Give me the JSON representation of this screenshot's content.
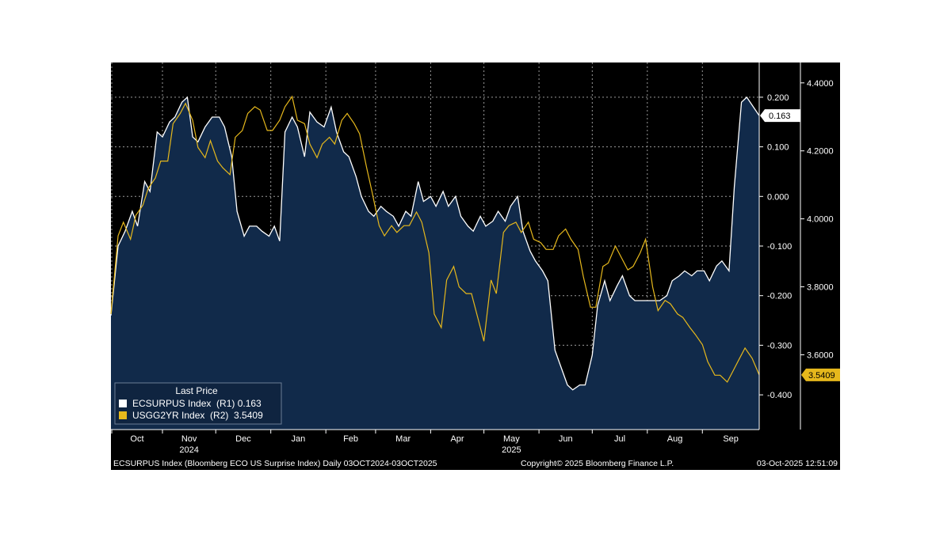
{
  "chart_data": {
    "type": "line",
    "legend": {
      "title": "Last Price",
      "placement": "bottom-left",
      "entries": [
        {
          "label": "ECSURPUS Index  (R1) 0.163",
          "color": "#ffffff"
        },
        {
          "label": "USGG2YR Index  (R2)  3.5409",
          "color": "#e6b81c"
        }
      ]
    },
    "x_ticks": [
      "Oct",
      "Nov",
      "Dec",
      "Jan",
      "Feb",
      "Mar",
      "Apr",
      "May",
      "Jun",
      "Jul",
      "Aug",
      "Sep"
    ],
    "x_year_labels": [
      {
        "label": "2024",
        "under": "Nov"
      },
      {
        "label": "2025",
        "under": "May"
      }
    ],
    "x_range": [
      "2024-10-03",
      "2025-10-03"
    ],
    "axis_r1": {
      "ylim": [
        -0.47,
        0.27
      ],
      "ticks": [
        "0.200",
        "0.100",
        "0.000",
        "-0.100",
        "-0.200",
        "-0.300",
        "-0.400"
      ],
      "last_value": "0.163"
    },
    "axis_r2": {
      "ylim": [
        3.38,
        4.46
      ],
      "ticks": [
        "4.4000",
        "4.2000",
        "4.0000",
        "3.8000",
        "3.6000"
      ],
      "last_value": "3.5409"
    },
    "grid": true,
    "series": [
      {
        "name": "ECSURPUS Index",
        "axis": "r1",
        "style": "area",
        "color": "#ffffff",
        "fill": "#112a4a",
        "points": [
          [
            "2024-10-03",
            -0.24
          ],
          [
            "2024-10-07",
            -0.1
          ],
          [
            "2024-10-11",
            -0.07
          ],
          [
            "2024-10-15",
            -0.03
          ],
          [
            "2024-10-18",
            -0.06
          ],
          [
            "2024-10-22",
            0.03
          ],
          [
            "2024-10-25",
            0.01
          ],
          [
            "2024-10-29",
            0.13
          ],
          [
            "2024-11-01",
            0.12
          ],
          [
            "2024-11-05",
            0.15
          ],
          [
            "2024-11-08",
            0.16
          ],
          [
            "2024-11-12",
            0.19
          ],
          [
            "2024-11-15",
            0.2
          ],
          [
            "2024-11-18",
            0.12
          ],
          [
            "2024-11-21",
            0.11
          ],
          [
            "2024-11-25",
            0.14
          ],
          [
            "2024-11-29",
            0.16
          ],
          [
            "2024-12-03",
            0.16
          ],
          [
            "2024-12-06",
            0.14
          ],
          [
            "2024-12-10",
            0.08
          ],
          [
            "2024-12-13",
            -0.03
          ],
          [
            "2024-12-17",
            -0.08
          ],
          [
            "2024-12-20",
            -0.06
          ],
          [
            "2024-12-24",
            -0.06
          ],
          [
            "2024-12-27",
            -0.07
          ],
          [
            "2024-12-31",
            -0.08
          ],
          [
            "2025-01-03",
            -0.06
          ],
          [
            "2025-01-06",
            -0.09
          ],
          [
            "2025-01-09",
            0.13
          ],
          [
            "2025-01-13",
            0.16
          ],
          [
            "2025-01-16",
            0.14
          ],
          [
            "2025-01-20",
            0.08
          ],
          [
            "2025-01-23",
            0.17
          ],
          [
            "2025-01-27",
            0.15
          ],
          [
            "2025-01-31",
            0.14
          ],
          [
            "2025-02-04",
            0.18
          ],
          [
            "2025-02-07",
            0.13
          ],
          [
            "2025-02-11",
            0.09
          ],
          [
            "2025-02-14",
            0.08
          ],
          [
            "2025-02-18",
            0.04
          ],
          [
            "2025-02-21",
            0.0
          ],
          [
            "2025-02-25",
            -0.03
          ],
          [
            "2025-02-28",
            -0.04
          ],
          [
            "2025-03-04",
            -0.02
          ],
          [
            "2025-03-07",
            -0.03
          ],
          [
            "2025-03-11",
            -0.04
          ],
          [
            "2025-03-14",
            -0.06
          ],
          [
            "2025-03-18",
            -0.03
          ],
          [
            "2025-03-21",
            -0.04
          ],
          [
            "2025-03-25",
            0.03
          ],
          [
            "2025-03-28",
            -0.01
          ],
          [
            "2025-04-01",
            0.0
          ],
          [
            "2025-04-04",
            -0.02
          ],
          [
            "2025-04-08",
            0.01
          ],
          [
            "2025-04-11",
            -0.02
          ],
          [
            "2025-04-15",
            0.0
          ],
          [
            "2025-04-18",
            -0.04
          ],
          [
            "2025-04-22",
            -0.06
          ],
          [
            "2025-04-25",
            -0.07
          ],
          [
            "2025-04-29",
            -0.04
          ],
          [
            "2025-05-02",
            -0.06
          ],
          [
            "2025-05-06",
            -0.05
          ],
          [
            "2025-05-09",
            -0.03
          ],
          [
            "2025-05-13",
            -0.05
          ],
          [
            "2025-05-16",
            -0.02
          ],
          [
            "2025-05-20",
            0.0
          ],
          [
            "2025-05-23",
            -0.07
          ],
          [
            "2025-05-27",
            -0.11
          ],
          [
            "2025-05-30",
            -0.13
          ],
          [
            "2025-06-03",
            -0.15
          ],
          [
            "2025-06-06",
            -0.17
          ],
          [
            "2025-06-10",
            -0.31
          ],
          [
            "2025-06-13",
            -0.34
          ],
          [
            "2025-06-17",
            -0.38
          ],
          [
            "2025-06-20",
            -0.39
          ],
          [
            "2025-06-24",
            -0.38
          ],
          [
            "2025-06-27",
            -0.38
          ],
          [
            "2025-07-01",
            -0.32
          ],
          [
            "2025-07-04",
            -0.22
          ],
          [
            "2025-07-08",
            -0.17
          ],
          [
            "2025-07-11",
            -0.21
          ],
          [
            "2025-07-15",
            -0.18
          ],
          [
            "2025-07-18",
            -0.16
          ],
          [
            "2025-07-22",
            -0.2
          ],
          [
            "2025-07-25",
            -0.21
          ],
          [
            "2025-07-29",
            -0.21
          ],
          [
            "2025-08-01",
            -0.21
          ],
          [
            "2025-08-05",
            -0.21
          ],
          [
            "2025-08-08",
            -0.21
          ],
          [
            "2025-08-12",
            -0.2
          ],
          [
            "2025-08-15",
            -0.17
          ],
          [
            "2025-08-19",
            -0.16
          ],
          [
            "2025-08-22",
            -0.15
          ],
          [
            "2025-08-26",
            -0.16
          ],
          [
            "2025-08-29",
            -0.15
          ],
          [
            "2025-09-02",
            -0.15
          ],
          [
            "2025-09-05",
            -0.17
          ],
          [
            "2025-09-09",
            -0.14
          ],
          [
            "2025-09-12",
            -0.13
          ],
          [
            "2025-09-16",
            -0.15
          ],
          [
            "2025-09-19",
            0.02
          ],
          [
            "2025-09-23",
            0.19
          ],
          [
            "2025-09-26",
            0.2
          ],
          [
            "2025-10-03",
            0.163
          ]
        ]
      },
      {
        "name": "USGG2YR Index",
        "axis": "r2",
        "style": "line",
        "color": "#e6b81c",
        "points": [
          [
            "2024-10-03",
            3.72
          ],
          [
            "2024-10-07",
            3.95
          ],
          [
            "2024-10-10",
            3.99
          ],
          [
            "2024-10-14",
            3.94
          ],
          [
            "2024-10-17",
            4.01
          ],
          [
            "2024-10-21",
            4.04
          ],
          [
            "2024-10-24",
            4.09
          ],
          [
            "2024-10-28",
            4.12
          ],
          [
            "2024-10-31",
            4.17
          ],
          [
            "2024-11-04",
            4.17
          ],
          [
            "2024-11-07",
            4.28
          ],
          [
            "2024-11-11",
            4.31
          ],
          [
            "2024-11-14",
            4.34
          ],
          [
            "2024-11-18",
            4.29
          ],
          [
            "2024-11-21",
            4.21
          ],
          [
            "2024-11-25",
            4.18
          ],
          [
            "2024-11-28",
            4.23
          ],
          [
            "2024-12-02",
            4.17
          ],
          [
            "2024-12-05",
            4.15
          ],
          [
            "2024-12-09",
            4.13
          ],
          [
            "2024-12-12",
            4.24
          ],
          [
            "2024-12-16",
            4.26
          ],
          [
            "2024-12-19",
            4.31
          ],
          [
            "2024-12-23",
            4.33
          ],
          [
            "2024-12-26",
            4.32
          ],
          [
            "2024-12-30",
            4.26
          ],
          [
            "2025-01-02",
            4.26
          ],
          [
            "2025-01-06",
            4.29
          ],
          [
            "2025-01-09",
            4.33
          ],
          [
            "2025-01-13",
            4.36
          ],
          [
            "2025-01-16",
            4.29
          ],
          [
            "2025-01-20",
            4.28
          ],
          [
            "2025-01-23",
            4.22
          ],
          [
            "2025-01-27",
            4.18
          ],
          [
            "2025-01-30",
            4.22
          ],
          [
            "2025-02-03",
            4.24
          ],
          [
            "2025-02-06",
            4.22
          ],
          [
            "2025-02-10",
            4.29
          ],
          [
            "2025-02-13",
            4.31
          ],
          [
            "2025-02-17",
            4.28
          ],
          [
            "2025-02-20",
            4.25
          ],
          [
            "2025-02-24",
            4.15
          ],
          [
            "2025-02-27",
            4.08
          ],
          [
            "2025-03-03",
            3.98
          ],
          [
            "2025-03-06",
            3.95
          ],
          [
            "2025-03-10",
            3.98
          ],
          [
            "2025-03-13",
            3.96
          ],
          [
            "2025-03-17",
            3.98
          ],
          [
            "2025-03-20",
            3.98
          ],
          [
            "2025-03-24",
            4.02
          ],
          [
            "2025-03-27",
            3.99
          ],
          [
            "2025-03-31",
            3.9
          ],
          [
            "2025-04-03",
            3.72
          ],
          [
            "2025-04-07",
            3.68
          ],
          [
            "2025-04-10",
            3.82
          ],
          [
            "2025-04-14",
            3.86
          ],
          [
            "2025-04-17",
            3.8
          ],
          [
            "2025-04-21",
            3.78
          ],
          [
            "2025-04-24",
            3.78
          ],
          [
            "2025-04-28",
            3.7
          ],
          [
            "2025-05-01",
            3.64
          ],
          [
            "2025-05-05",
            3.82
          ],
          [
            "2025-05-08",
            3.78
          ],
          [
            "2025-05-12",
            3.96
          ],
          [
            "2025-05-15",
            3.98
          ],
          [
            "2025-05-19",
            3.99
          ],
          [
            "2025-05-22",
            3.96
          ],
          [
            "2025-05-26",
            3.99
          ],
          [
            "2025-05-29",
            3.94
          ],
          [
            "2025-06-02",
            3.93
          ],
          [
            "2025-06-05",
            3.91
          ],
          [
            "2025-06-09",
            3.91
          ],
          [
            "2025-06-12",
            3.95
          ],
          [
            "2025-06-16",
            3.97
          ],
          [
            "2025-06-19",
            3.94
          ],
          [
            "2025-06-23",
            3.91
          ],
          [
            "2025-06-26",
            3.83
          ],
          [
            "2025-06-30",
            3.74
          ],
          [
            "2025-07-03",
            3.74
          ],
          [
            "2025-07-07",
            3.86
          ],
          [
            "2025-07-10",
            3.87
          ],
          [
            "2025-07-14",
            3.92
          ],
          [
            "2025-07-17",
            3.89
          ],
          [
            "2025-07-21",
            3.85
          ],
          [
            "2025-07-24",
            3.86
          ],
          [
            "2025-07-28",
            3.9
          ],
          [
            "2025-07-31",
            3.94
          ],
          [
            "2025-08-04",
            3.8
          ],
          [
            "2025-08-07",
            3.73
          ],
          [
            "2025-08-11",
            3.76
          ],
          [
            "2025-08-14",
            3.75
          ],
          [
            "2025-08-18",
            3.72
          ],
          [
            "2025-08-21",
            3.71
          ],
          [
            "2025-08-25",
            3.68
          ],
          [
            "2025-08-28",
            3.66
          ],
          [
            "2025-09-01",
            3.63
          ],
          [
            "2025-09-04",
            3.58
          ],
          [
            "2025-09-08",
            3.54
          ],
          [
            "2025-09-11",
            3.54
          ],
          [
            "2025-09-15",
            3.52
          ],
          [
            "2025-09-18",
            3.55
          ],
          [
            "2025-09-22",
            3.59
          ],
          [
            "2025-09-25",
            3.62
          ],
          [
            "2025-09-29",
            3.59
          ],
          [
            "2025-10-03",
            3.5409
          ]
        ]
      }
    ]
  },
  "footer": {
    "left": "ECSURPUS Index (Bloomberg ECO US Surprise Index) Daily 03OCT2024-03OCT2025",
    "center": "Copyright© 2025 Bloomberg Finance L.P.",
    "right": "03-Oct-2025 12:51:09"
  }
}
